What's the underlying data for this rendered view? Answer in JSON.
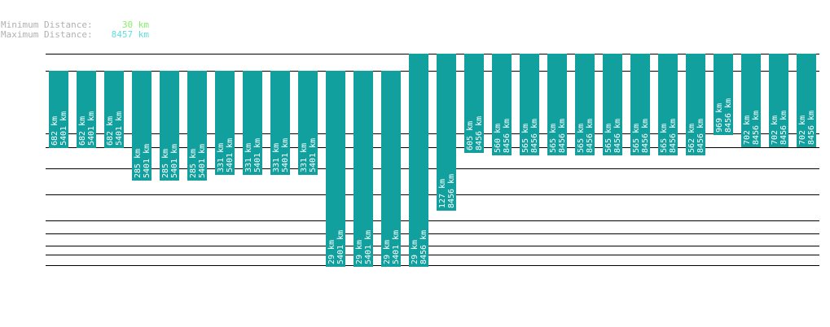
{
  "stats": {
    "min_label": "Minimum Distance:",
    "min_value": "30 km",
    "max_label": "Maximum Distance:",
    "max_value": "8457 km"
  },
  "colors": {
    "bar": "#12a09e",
    "bar_text": "#ffffff",
    "line": "#000000",
    "min_value": "#88ee66",
    "max_value": "#66dddd",
    "label": "#b0b0b0"
  },
  "chart_data": {
    "type": "bar",
    "title": "",
    "xlabel": "",
    "ylabel": "",
    "scale": "log",
    "range_km": [
      30,
      8457
    ],
    "reference_lines_km": [
      8457,
      5401,
      1000,
      700,
      400,
      200,
      100,
      70,
      50,
      40,
      30
    ],
    "bars": [
      {
        "distance": 682,
        "total": 5401,
        "distance_label": "682 km",
        "total_label": "5401 km"
      },
      {
        "distance": 682,
        "total": 5401,
        "distance_label": "682 km",
        "total_label": "5401 km"
      },
      {
        "distance": 682,
        "total": 5401,
        "distance_label": "682 km",
        "total_label": "5401 km"
      },
      {
        "distance": 285,
        "total": 5401,
        "distance_label": "285 km",
        "total_label": "5401 km"
      },
      {
        "distance": 285,
        "total": 5401,
        "distance_label": "285 km",
        "total_label": "5401 km"
      },
      {
        "distance": 285,
        "total": 5401,
        "distance_label": "285 km",
        "total_label": "5401 km"
      },
      {
        "distance": 331,
        "total": 5401,
        "distance_label": "331 km",
        "total_label": "5401 km"
      },
      {
        "distance": 331,
        "total": 5401,
        "distance_label": "331 km",
        "total_label": "5401 km"
      },
      {
        "distance": 331,
        "total": 5401,
        "distance_label": "331 km",
        "total_label": "5401 km"
      },
      {
        "distance": 331,
        "total": 5401,
        "distance_label": "331 km",
        "total_label": "5401 km"
      },
      {
        "distance": 29,
        "total": 5401,
        "distance_label": "29 km",
        "total_label": "5401 km"
      },
      {
        "distance": 29,
        "total": 5401,
        "distance_label": "29 km",
        "total_label": "5401 km"
      },
      {
        "distance": 29,
        "total": 5401,
        "distance_label": "29 km",
        "total_label": "5401 km"
      },
      {
        "distance": 29,
        "total": 8456,
        "distance_label": "29 km",
        "total_label": "8456 km"
      },
      {
        "distance": 127,
        "total": 8456,
        "distance_label": "127 km",
        "total_label": "8456 km"
      },
      {
        "distance": 605,
        "total": 8456,
        "distance_label": "605 km",
        "total_label": "8456 km"
      },
      {
        "distance": 560,
        "total": 8456,
        "distance_label": "560 km",
        "total_label": "8456 km"
      },
      {
        "distance": 565,
        "total": 8456,
        "distance_label": "565 km",
        "total_label": "8456 km"
      },
      {
        "distance": 565,
        "total": 8456,
        "distance_label": "565 km",
        "total_label": "8456 km"
      },
      {
        "distance": 565,
        "total": 8456,
        "distance_label": "565 km",
        "total_label": "8456 km"
      },
      {
        "distance": 565,
        "total": 8456,
        "distance_label": "565 km",
        "total_label": "8456 km"
      },
      {
        "distance": 565,
        "total": 8456,
        "distance_label": "565 km",
        "total_label": "8456 km"
      },
      {
        "distance": 565,
        "total": 8456,
        "distance_label": "565 km",
        "total_label": "8456 km"
      },
      {
        "distance": 562,
        "total": 8456,
        "distance_label": "562 km",
        "total_label": "8456 km"
      },
      {
        "distance": 969,
        "total": 8456,
        "distance_label": "969 km",
        "total_label": "8456 km"
      },
      {
        "distance": 702,
        "total": 8456,
        "distance_label": "702 km",
        "total_label": "8456 km"
      },
      {
        "distance": 702,
        "total": 8456,
        "distance_label": "702 km",
        "total_label": "8456 km"
      },
      {
        "distance": 702,
        "total": 8456,
        "distance_label": "702 km",
        "total_label": "8456 km"
      }
    ]
  }
}
